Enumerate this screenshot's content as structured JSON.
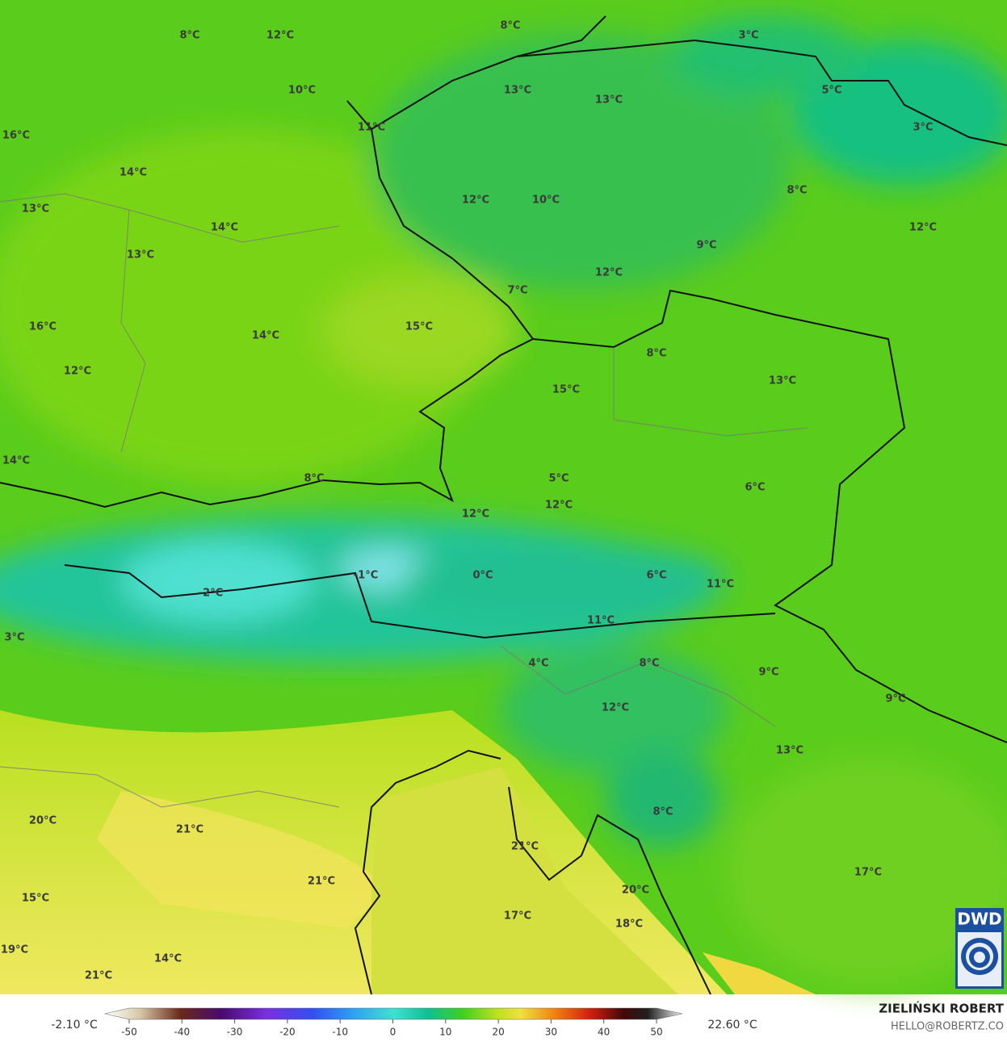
{
  "map": {
    "labels": [
      "8°C",
      "12°C",
      "8°C",
      "3°C",
      "10°C",
      "13°C",
      "13°C",
      "5°C",
      "11°C",
      "3°C",
      "16°C",
      "14°C",
      "12°C",
      "10°C",
      "8°C",
      "13°C",
      "14°C",
      "12°C",
      "13°C",
      "9°C",
      "12°C",
      "7°C",
      "16°C",
      "14°C",
      "15°C",
      "8°C",
      "12°C",
      "13°C",
      "15°C",
      "14°C",
      "8°C",
      "5°C",
      "6°C",
      "12°C",
      "12°C",
      "-1°C",
      "0°C",
      "6°C",
      "11°C",
      "-2°C",
      "11°C",
      "3°C",
      "4°C",
      "8°C",
      "9°C",
      "12°C",
      "9°C",
      "13°C",
      "8°C",
      "20°C",
      "21°C",
      "21°C",
      "17°C",
      "21°C",
      "20°C",
      "15°C",
      "17°C",
      "18°C",
      "19°C",
      "14°C",
      "21°C"
    ],
    "logo": "DWD"
  },
  "colorbar": {
    "min_label": "-2.10 °C",
    "max_label": "22.60 °C",
    "ticks": [
      -50,
      -40,
      -30,
      -20,
      -10,
      0,
      10,
      20,
      30,
      40,
      50
    ]
  },
  "credits": {
    "author": "ZIELIŃSKI ROBERT",
    "contact": "HELLO@ROBERTZ.CO"
  }
}
